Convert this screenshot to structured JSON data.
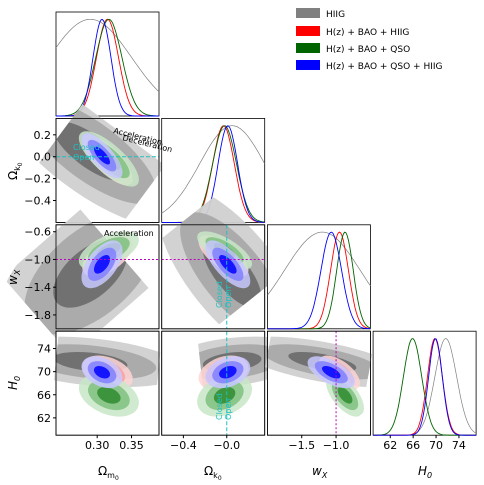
{
  "chart_data": {
    "type": "scatter",
    "kind": "corner-plot",
    "parameters": [
      {
        "key": "om",
        "label": "Ω_m0",
        "range": [
          0.24,
          0.39
        ],
        "ticks": [
          0.3,
          0.35
        ],
        "tick_labels": [
          "0.30",
          "0.35"
        ]
      },
      {
        "key": "ok",
        "label": "Ω_k0",
        "range": [
          -0.6,
          0.35
        ],
        "ticks": [
          -0.4,
          0.0
        ],
        "ticks_y": [
          0.2,
          0.0,
          -0.2,
          -0.4
        ],
        "tick_labels": [
          "−0.4",
          "−0.0"
        ],
        "tick_labels_y": [
          "0.2",
          "0.0",
          "−0.2",
          "−0.4"
        ]
      },
      {
        "key": "wx",
        "label": "w_X",
        "range": [
          -2.0,
          -0.5
        ],
        "ticks": [
          -1.5,
          -1.0
        ],
        "ticks_y": [
          -0.6,
          -1.0,
          -1.4,
          -1.8
        ],
        "tick_labels": [
          "−1.5",
          "−1.0"
        ],
        "tick_labels_y": [
          "−0.6",
          "−1.0",
          "−1.4",
          "−1.8"
        ]
      },
      {
        "key": "h0",
        "label": "H_0",
        "range": [
          59,
          77
        ],
        "ticks": [
          62,
          66,
          70,
          74
        ],
        "tick_labels": [
          "62",
          "66",
          "70",
          "74"
        ]
      }
    ],
    "legend": {
      "position": "upper-right",
      "entries": [
        {
          "name": "HIIG",
          "color": "#808080"
        },
        {
          "name": "H(z) + BAO + HIIG",
          "color": "#ff0000"
        },
        {
          "name": "H(z) + BAO + QSO",
          "color": "#006400"
        },
        {
          "name": "H(z) + BAO + QSO + HIIG",
          "color": "#0000ff"
        }
      ]
    },
    "series": [
      {
        "name": "HIIG",
        "color": "#808080",
        "mean": {
          "om": 0.29,
          "ok": 0.05,
          "wx": -1.2,
          "h0": 71.7
        },
        "sigma": {
          "om": 0.06,
          "ok": 0.3,
          "wx": 0.55,
          "h0": 1.9
        }
      },
      {
        "name": "H(z) + BAO + HIIG",
        "color": "#ff0000",
        "mean": {
          "om": 0.315,
          "ok": -0.03,
          "wx": -0.95,
          "h0": 69.8
        },
        "sigma": {
          "om": 0.016,
          "ok": 0.1,
          "wx": 0.13,
          "h0": 1.3
        }
      },
      {
        "name": "H(z) + BAO + QSO",
        "color": "#006400",
        "mean": {
          "om": 0.317,
          "ok": -0.02,
          "wx": -0.87,
          "h0": 65.9
        },
        "sigma": {
          "om": 0.019,
          "ok": 0.11,
          "wx": 0.12,
          "h0": 1.6
        }
      },
      {
        "name": "H(z) + BAO + QSO + HIIG",
        "color": "#0000ff",
        "mean": {
          "om": 0.307,
          "ok": 0.01,
          "wx": -1.07,
          "h0": 69.9
        },
        "sigma": {
          "om": 0.013,
          "ok": 0.09,
          "wx": 0.15,
          "h0": 1.2
        }
      }
    ],
    "annotations": {
      "acceleration": "Acceleration",
      "deceleration": "Deceleration",
      "closed": "Closed",
      "open": "Open"
    },
    "reference_lines": {
      "ok": 0.0,
      "wx": -1.0
    }
  },
  "legend": {
    "hiig": "HIIG",
    "hz_bao_hiig": "H(z)  +  BAO  +  HIIG",
    "hz_bao_qso": "H(z)  +  BAO  +  QSO",
    "hz_bao_qso_hiig": "H(z)  +  BAO  +  QSO  +  HIIG"
  },
  "labels": {
    "om": "Ω",
    "om_sub": "m",
    "om_sub2": "0",
    "ok": "Ω",
    "ok_sub": "k",
    "ok_sub2": "0",
    "wx": "w",
    "wx_sub": "X",
    "h0": "H",
    "h0_sub": "0"
  }
}
